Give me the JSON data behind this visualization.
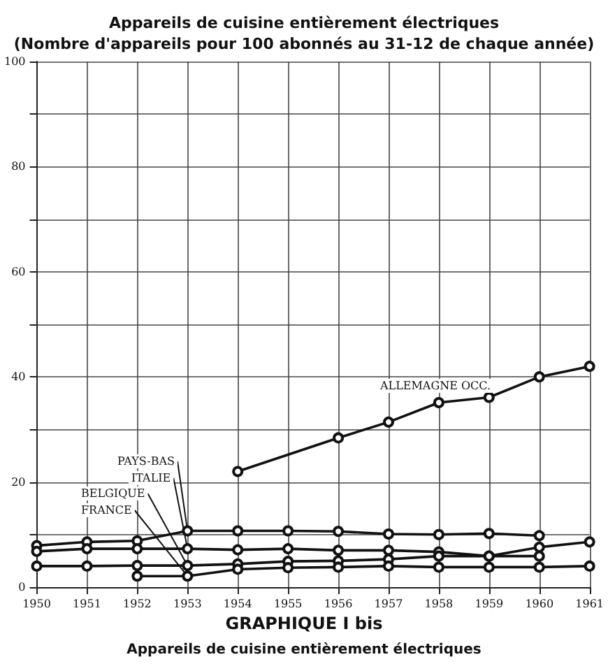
{
  "chart_data": {
    "type": "line",
    "title": "Appareils de cuisine entièrement électriques\n(Nombre d'appareils pour 100 abonnés au 31-12 de chaque année)",
    "annotations": [
      "GRAPHIQUE I bis",
      "Appareils de cuisine entièrement électriques"
    ],
    "series": [
      {
        "name": "ALLEMAGNE OCC.",
        "color": "#111111",
        "x": [
          1954,
          1956,
          1957,
          1958,
          1959,
          1960,
          1961
        ],
        "values": [
          22,
          28.4,
          31.4,
          35.1,
          36.1,
          40,
          42
        ]
      },
      {
        "name": "PAYS-BAS",
        "color": "#111111",
        "x": [
          1950,
          1951,
          1952,
          1953,
          1954,
          1955,
          1956,
          1957,
          1958,
          1959,
          1960
        ],
        "values": [
          7.9,
          8.6,
          8.8,
          10.7,
          10.7,
          10.7,
          10.6,
          10.1,
          10,
          10.2,
          9.8
        ]
      },
      {
        "name": "ITALIE",
        "color": "#111111",
        "x": [
          1950,
          1951,
          1952,
          1953,
          1954,
          1955,
          1956,
          1957,
          1958,
          1959,
          1960
        ],
        "values": [
          6.8,
          7.3,
          7.3,
          7.3,
          7.1,
          7.3,
          7,
          7,
          6.7,
          5.9,
          5.9
        ]
      },
      {
        "name": "BELGIQUE",
        "color": "#111111",
        "x": [
          1950,
          1951,
          1952,
          1953,
          1954,
          1955,
          1956,
          1957,
          1958,
          1959,
          1960,
          1961
        ],
        "values": [
          4,
          4,
          4.1,
          4.1,
          4.4,
          4.9,
          5,
          5.3,
          5.9,
          5.9,
          7.6,
          8.6
        ]
      },
      {
        "name": "FRANCE",
        "color": "#111111",
        "x": [
          1952,
          1953,
          1954,
          1955,
          1956,
          1957,
          1958,
          1959,
          1960,
          1961
        ],
        "values": [
          2.1,
          2.1,
          3.4,
          3.7,
          3.8,
          4,
          3.8,
          3.8,
          3.8,
          4
        ]
      }
    ],
    "xlim": [
      1950,
      1961
    ],
    "xticks": [
      1950,
      1951,
      1952,
      1953,
      1954,
      1955,
      1956,
      1957,
      1958,
      1959,
      1960,
      1961
    ],
    "ylim": [
      0,
      100
    ],
    "yticks": [
      0,
      {
        "value": 10,
        "label": null
      },
      20,
      {
        "value": 30,
        "label": null
      },
      40,
      {
        "value": 50,
        "label": null
      },
      60,
      {
        "value": 70,
        "label": null
      },
      80,
      {
        "value": 90,
        "label": null
      },
      100
    ],
    "grid": true,
    "legend": false,
    "marker": "circle",
    "line_style": "solid"
  }
}
